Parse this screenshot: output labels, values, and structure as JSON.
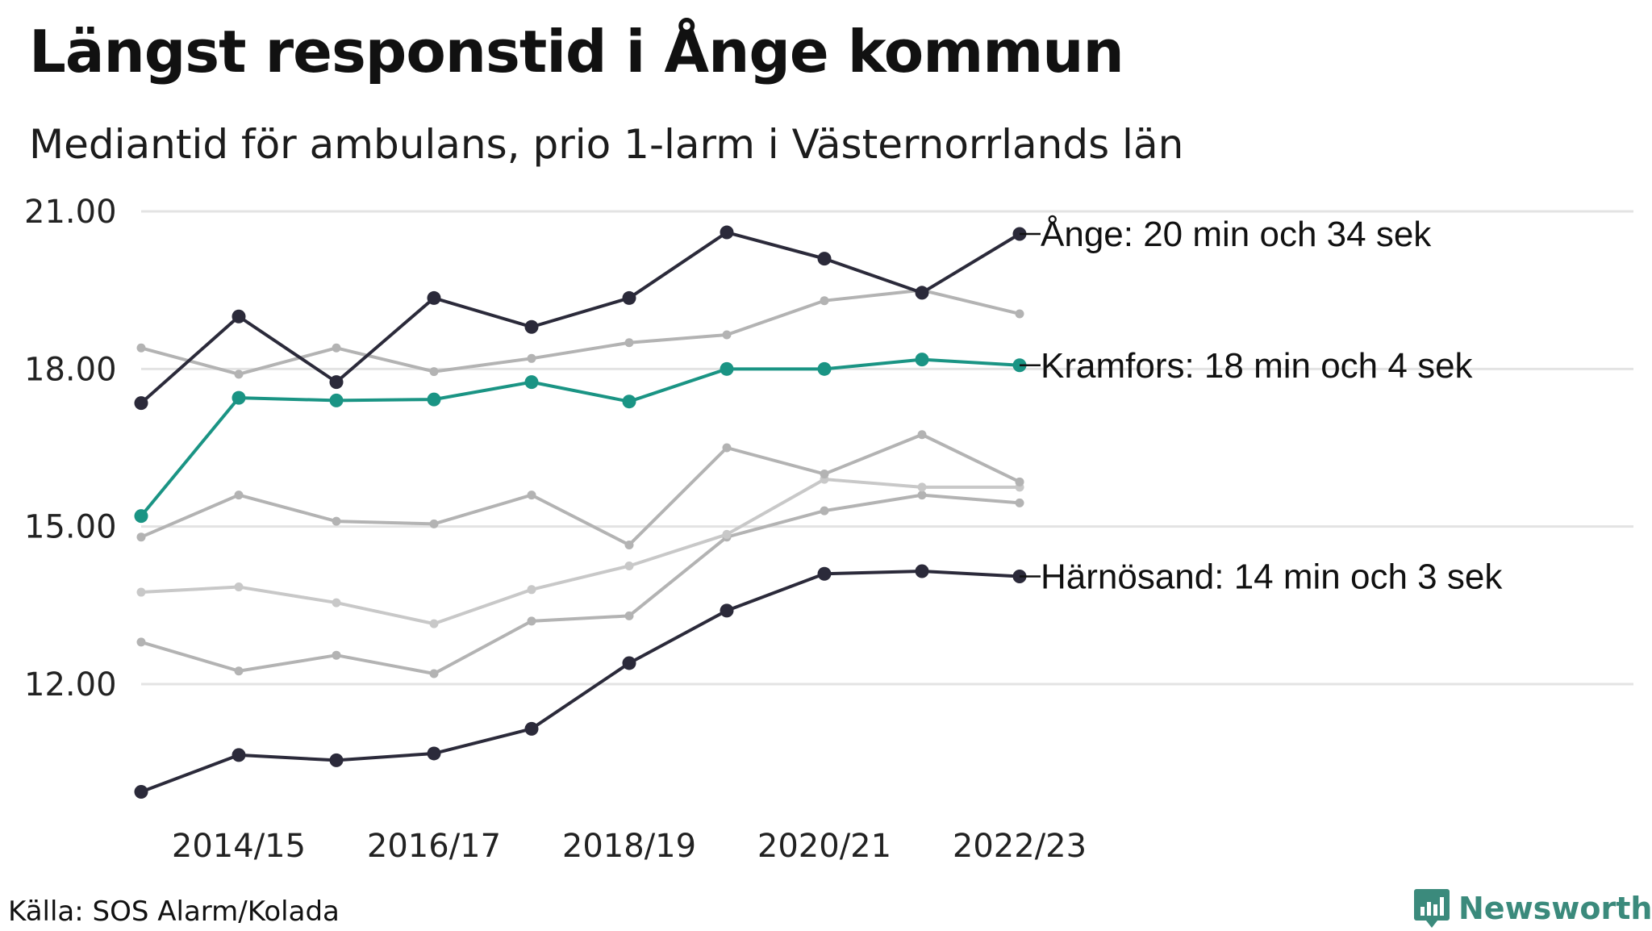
{
  "header": {
    "title": "Längst responstid i Ånge kommun",
    "subtitle": "Mediantid för ambulans, prio 1-larm i Västernorrlands län"
  },
  "footer": {
    "source": "Källa: SOS Alarm/Kolada",
    "brand": "Newsworthy"
  },
  "colors": {
    "highlight_dark": "#2b2a3a",
    "highlight_accent": "#1a9484",
    "context_gray": "#b3b3b3",
    "context_light": "#c8c8c8",
    "grid": "#e3e3e3",
    "brand": "#3b8a7c"
  },
  "chart_data": {
    "type": "line",
    "x": [
      "2013/14",
      "2014/15",
      "2015/16",
      "2016/17",
      "2017/18",
      "2018/19",
      "2019/20",
      "2020/21",
      "2021/22",
      "2022/23"
    ],
    "x_tick_labels": [
      "2014/15",
      "2016/17",
      "2018/19",
      "2020/21",
      "2022/23"
    ],
    "y_ticks": [
      "12.00",
      "15.00",
      "18.00",
      "21.00"
    ],
    "ylim": [
      9.4,
      21.0
    ],
    "grid": true,
    "series": [
      {
        "values": [
          12.8,
          12.25,
          12.55,
          12.2,
          13.2,
          13.3,
          14.8,
          15.3,
          15.6,
          15.45
        ],
        "style": "context"
      },
      {
        "values": [
          13.75,
          13.85,
          13.55,
          13.15,
          13.8,
          14.25,
          14.85,
          15.9,
          15.75,
          15.75
        ],
        "style": "context-light"
      },
      {
        "values": [
          14.8,
          15.6,
          15.1,
          15.05,
          15.6,
          14.65,
          16.5,
          16.0,
          16.75,
          15.85
        ],
        "style": "context"
      },
      {
        "values": [
          18.4,
          17.9,
          18.4,
          17.95,
          18.2,
          18.5,
          18.65,
          19.3,
          19.5,
          19.05
        ],
        "style": "context"
      },
      {
        "name": "Kramfors",
        "label": "Kramfors: 18 min och 4 sek",
        "values": [
          15.2,
          17.45,
          17.4,
          17.42,
          17.75,
          17.38,
          18.0,
          18.0,
          18.18,
          18.07
        ],
        "style": "accent"
      },
      {
        "name": "Härnösand",
        "label": "Härnösand: 14 min och 3 sek",
        "values": [
          9.95,
          10.65,
          10.55,
          10.68,
          11.15,
          12.4,
          13.4,
          14.1,
          14.15,
          14.05
        ],
        "style": "dark"
      },
      {
        "name": "Ånge",
        "label": "Ånge: 20 min och 34 sek",
        "values": [
          17.35,
          19.0,
          17.75,
          19.35,
          18.8,
          19.35,
          20.6,
          20.1,
          19.45,
          20.57
        ],
        "style": "dark"
      }
    ]
  }
}
